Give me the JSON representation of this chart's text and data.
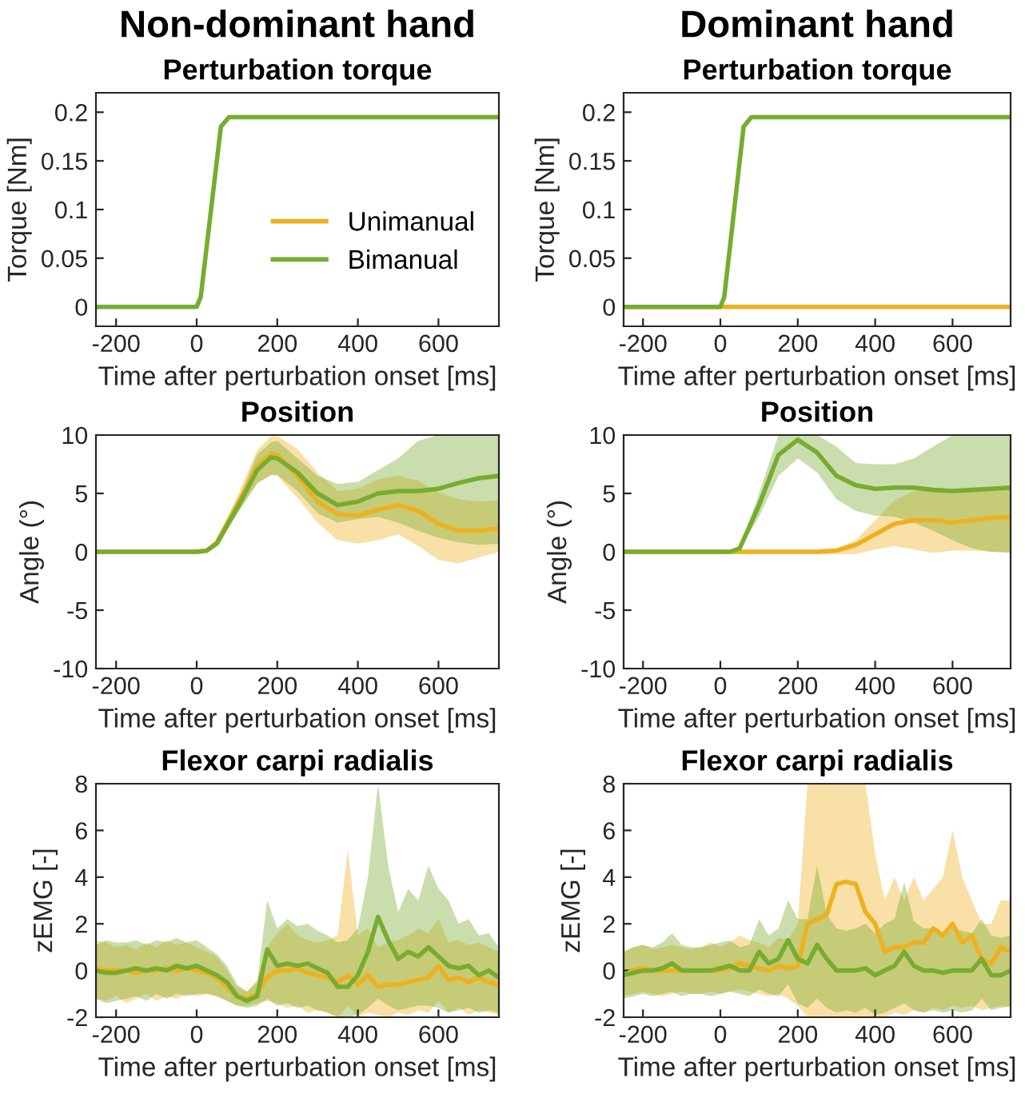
{
  "chart_data": [
    {
      "type": "line",
      "title": "Non-dominant hand",
      "subtitle": "Perturbation torque",
      "xlabel": "Time after perturbation onset [ms]",
      "ylabel": "Torque [Nm]",
      "xlim": [
        -250,
        750
      ],
      "xticks": [
        -200,
        0,
        200,
        400,
        600
      ],
      "ylim": [
        -0.02,
        0.22
      ],
      "yticks": [
        0,
        0.05,
        0.1,
        0.15,
        0.2
      ],
      "legend": "lower right",
      "grid": false,
      "series": [
        {
          "name": "Unimanual",
          "color": "#edb120"
        },
        {
          "name": "Bimanual",
          "color": "#77ac30",
          "x": [
            -250,
            0,
            10,
            60,
            80,
            100,
            750
          ],
          "values": [
            0,
            0,
            0.01,
            0.185,
            0.195,
            0.195,
            0.195
          ]
        }
      ]
    },
    {
      "type": "line",
      "title": "Dominant hand",
      "subtitle": "Perturbation torque",
      "xlabel": "Time after perturbation onset [ms]",
      "ylabel": "Torque [Nm]",
      "xlim": [
        -250,
        750
      ],
      "xticks": [
        -200,
        0,
        200,
        400,
        600
      ],
      "ylim": [
        -0.02,
        0.22
      ],
      "yticks": [
        0,
        0.05,
        0.1,
        0.15,
        0.2
      ],
      "grid": false,
      "series": [
        {
          "color": "#edb120",
          "x": [
            -250,
            750
          ],
          "values": [
            0,
            0
          ]
        },
        {
          "color": "#77ac30",
          "x": [
            -250,
            0,
            10,
            60,
            80,
            100,
            750
          ],
          "values": [
            0,
            0,
            0.01,
            0.185,
            0.195,
            0.195,
            0.195
          ]
        }
      ]
    },
    {
      "type": "line",
      "title": "Position",
      "xlabel": "Time after perturbation onset [ms]",
      "ylabel": "Angle (°)",
      "xlim": [
        -250,
        750
      ],
      "xticks": [
        -200,
        0,
        200,
        400,
        600
      ],
      "ylim": [
        -10,
        10
      ],
      "yticks": [
        -10,
        -5,
        0,
        5,
        10
      ],
      "grid": false,
      "series": [
        {
          "color": "#edb120",
          "x": [
            -250,
            0,
            25,
            50,
            100,
            150,
            185,
            200,
            250,
            300,
            350,
            400,
            450,
            500,
            550,
            600,
            650,
            700,
            750
          ],
          "values": [
            0,
            0,
            0.1,
            0.8,
            4,
            7.3,
            8.4,
            8.3,
            6.5,
            4.3,
            3.2,
            3.1,
            3.6,
            4,
            3.5,
            2.4,
            1.8,
            1.8,
            2
          ],
          "lower": [
            0,
            0,
            0.1,
            0.6,
            3.3,
            5.8,
            6.6,
            6.5,
            4.6,
            2.5,
            1,
            0.7,
            1,
            1.5,
            0.5,
            -0.7,
            -1,
            -0.5,
            0
          ],
          "upper": [
            0,
            0,
            0.1,
            1,
            4.7,
            8.7,
            9.9,
            9.9,
            8.8,
            6.8,
            5.2,
            5.4,
            6.2,
            6.5,
            6.1,
            5.1,
            4.5,
            4.3,
            4.4
          ]
        },
        {
          "color": "#77ac30",
          "x": [
            -250,
            0,
            25,
            50,
            100,
            150,
            185,
            200,
            250,
            300,
            350,
            400,
            450,
            500,
            550,
            600,
            650,
            700,
            750
          ],
          "values": [
            0,
            0,
            0.1,
            0.7,
            3.7,
            7,
            8.1,
            8,
            6.8,
            5,
            4,
            4.3,
            5,
            5.2,
            5.2,
            5.4,
            5.9,
            6.3,
            6.5
          ],
          "lower": [
            0,
            0,
            0.1,
            0.6,
            3.2,
            5.9,
            6.6,
            6.6,
            5.2,
            3.3,
            2.5,
            2.8,
            3,
            2.5,
            1.8,
            1.2,
            0.8,
            0.6,
            0.7
          ],
          "upper": [
            0,
            0,
            0.1,
            0.8,
            4.2,
            8.3,
            9.4,
            9.5,
            8,
            6.5,
            5.8,
            6,
            7,
            8,
            9.5,
            10,
            10,
            10,
            10
          ]
        }
      ]
    },
    {
      "type": "line",
      "title": "Position",
      "xlabel": "Time after perturbation onset [ms]",
      "ylabel": "Angle (°)",
      "xlim": [
        -250,
        750
      ],
      "xticks": [
        -200,
        0,
        200,
        400,
        600
      ],
      "ylim": [
        -10,
        10
      ],
      "yticks": [
        -10,
        -5,
        0,
        5,
        10
      ],
      "grid": false,
      "series": [
        {
          "color": "#edb120",
          "x": [
            -250,
            250,
            300,
            350,
            400,
            450,
            500,
            550,
            600,
            650,
            700,
            750
          ],
          "values": [
            0,
            0,
            0.1,
            0.6,
            1.5,
            2.4,
            2.7,
            2.7,
            2.5,
            2.7,
            2.9,
            3
          ],
          "lower": [
            -0.2,
            -0.2,
            -0.2,
            -0.2,
            0.2,
            0.5,
            0.2,
            -0.1,
            0.1,
            0.1,
            0,
            0
          ],
          "upper": [
            0.2,
            0.2,
            0.3,
            1,
            2.7,
            4.4,
            5.2,
            5.5,
            5.3,
            5.3,
            5.5,
            5.6
          ]
        },
        {
          "color": "#77ac30",
          "x": [
            -250,
            25,
            50,
            100,
            150,
            200,
            250,
            300,
            350,
            400,
            450,
            500,
            550,
            600,
            650,
            700,
            750
          ],
          "values": [
            0,
            0,
            0.3,
            4,
            8.3,
            9.6,
            8.5,
            6.5,
            5.7,
            5.4,
            5.5,
            5.5,
            5.3,
            5.2,
            5.3,
            5.4,
            5.5
          ],
          "lower": [
            0,
            0,
            0.2,
            3,
            6.5,
            8,
            6.8,
            4.5,
            3.5,
            3.1,
            3,
            2.5,
            1.8,
            1,
            0.3,
            0,
            -0.1
          ],
          "upper": [
            0,
            0,
            0.4,
            5,
            10,
            10,
            10,
            9,
            7.6,
            7.5,
            7.5,
            8,
            9,
            10,
            10,
            10,
            10
          ]
        }
      ]
    },
    {
      "type": "line",
      "title": "Flexor carpi radialis",
      "xlabel": "Time after perturbation onset [ms]",
      "ylabel": "zEMG [-]",
      "xlim": [
        -250,
        750
      ],
      "xticks": [
        -200,
        0,
        200,
        400,
        600
      ],
      "ylim": [
        -2,
        8
      ],
      "yticks": [
        -2,
        0,
        2,
        4,
        6,
        8
      ],
      "grid": false,
      "series": [
        {
          "color": "#edb120",
          "x": [
            -250,
            -225,
            -200,
            -175,
            -150,
            -125,
            -100,
            -75,
            -50,
            -25,
            0,
            25,
            50,
            75,
            100,
            125,
            150,
            175,
            200,
            225,
            250,
            275,
            300,
            325,
            350,
            375,
            400,
            425,
            450,
            475,
            500,
            525,
            550,
            575,
            600,
            625,
            650,
            675,
            700,
            725,
            750
          ],
          "values": [
            0.1,
            0,
            0,
            0,
            -0.1,
            0,
            0,
            0.1,
            0,
            0.1,
            0,
            -0.1,
            -0.3,
            -0.7,
            -1.1,
            -1.2,
            -1,
            -0.3,
            0,
            0,
            0.1,
            -0.1,
            -0.2,
            -0.3,
            -0.5,
            -0.2,
            -0.6,
            -0.2,
            -0.7,
            -0.6,
            -0.6,
            -0.5,
            -0.4,
            -0.3,
            0.2,
            -0.4,
            -0.3,
            -0.5,
            -0.3,
            -0.5,
            -0.6
          ],
          "lower": [
            -1.2,
            -1.3,
            -1.1,
            -1.4,
            -1.2,
            -1,
            -1.3,
            -1.1,
            -1.2,
            -1,
            -1.1,
            -1,
            -1.1,
            -1.3,
            -1.5,
            -1.5,
            -1.4,
            -1.3,
            -1.4,
            -1.6,
            -1.5,
            -1.8,
            -1.7,
            -1.8,
            -2,
            -1.5,
            -2,
            -1.8,
            -1.9,
            -2,
            -1.8,
            -1.9,
            -1.7,
            -1.8,
            -1.3,
            -1.8,
            -1.6,
            -1.9,
            -1.7,
            -1.8,
            -1.9
          ],
          "upper": [
            1.3,
            1.2,
            1,
            1.1,
            0.9,
            1.2,
            1,
            1.3,
            1.1,
            1.2,
            1,
            0.8,
            0.6,
            0,
            -0.7,
            -0.9,
            -0.4,
            1,
            1.6,
            2,
            1.5,
            1.3,
            1.2,
            1.3,
            1.5,
            5.2,
            1.5,
            1.8,
            1,
            1.2,
            1.3,
            1.5,
            1.8,
            1.6,
            2.2,
            1.2,
            1.3,
            1.1,
            1.2,
            1,
            0.8
          ]
        },
        {
          "color": "#77ac30",
          "x": [
            -250,
            -225,
            -200,
            -175,
            -150,
            -125,
            -100,
            -75,
            -50,
            -25,
            0,
            25,
            50,
            75,
            100,
            125,
            150,
            175,
            200,
            225,
            250,
            275,
            300,
            325,
            350,
            375,
            400,
            425,
            450,
            475,
            500,
            525,
            550,
            575,
            600,
            625,
            650,
            675,
            700,
            725,
            750
          ],
          "values": [
            0,
            -0.1,
            -0.1,
            0,
            0.1,
            0,
            0.1,
            0,
            0.2,
            0.1,
            0.2,
            0,
            -0.2,
            -0.5,
            -1.1,
            -1.3,
            -1.1,
            0.9,
            0.2,
            0.3,
            0.2,
            0.3,
            0.1,
            -0.1,
            -0.7,
            -0.7,
            -0.2,
            0.8,
            2.3,
            1.3,
            0.5,
            0.8,
            0.6,
            1,
            0.6,
            0.2,
            0.1,
            0.2,
            -0.2,
            0,
            -0.3
          ],
          "lower": [
            -1.2,
            -1.4,
            -1.3,
            -1.2,
            -1.1,
            -1.3,
            -1,
            -1.2,
            -1,
            -1.1,
            -1,
            -1,
            -1.1,
            -1.3,
            -1.5,
            -1.6,
            -1.5,
            -1.2,
            -1.5,
            -1.4,
            -1.6,
            -1.5,
            -1.7,
            -1.8,
            -2,
            -2,
            -1.9,
            -1.6,
            -1.2,
            -1.5,
            -1.7,
            -1.6,
            -1.5,
            -1.5,
            -1.6,
            -1.8,
            -1.7,
            -1.6,
            -1.8,
            -1.7,
            -1.8
          ],
          "upper": [
            1.1,
            1.3,
            1.2,
            1.2,
            1.3,
            1.1,
            1.3,
            1.2,
            1.4,
            1.2,
            1.3,
            1,
            0.7,
            0.2,
            -0.6,
            -0.9,
            -0.5,
            3,
            1.8,
            2.2,
            1.9,
            2,
            1.7,
            1.5,
            1.2,
            1.3,
            1.8,
            4,
            8,
            4.5,
            2.5,
            3.5,
            3,
            4.5,
            3.5,
            3,
            2,
            2.2,
            1.5,
            1.6,
            1
          ]
        }
      ]
    },
    {
      "type": "line",
      "title": "Flexor carpi radialis",
      "xlabel": "Time after perturbation onset [ms]",
      "ylabel": "zEMG [-]",
      "xlim": [
        -250,
        750
      ],
      "xticks": [
        -200,
        0,
        200,
        400,
        600
      ],
      "ylim": [
        -2,
        8
      ],
      "yticks": [
        -2,
        0,
        2,
        4,
        6,
        8
      ],
      "grid": false,
      "series": [
        {
          "color": "#edb120",
          "x": [
            -250,
            -225,
            -200,
            -175,
            -150,
            -125,
            -100,
            -75,
            -50,
            -25,
            0,
            25,
            50,
            75,
            100,
            125,
            150,
            175,
            200,
            225,
            250,
            275,
            300,
            325,
            350,
            375,
            400,
            425,
            450,
            475,
            500,
            525,
            550,
            575,
            600,
            625,
            650,
            675,
            700,
            725,
            750
          ],
          "values": [
            -0.2,
            0,
            0.1,
            0,
            0,
            0,
            0,
            0,
            0,
            0,
            0,
            0.1,
            0.3,
            0.2,
            0.1,
            0,
            0.2,
            0.1,
            0.2,
            2,
            2.2,
            2.4,
            3.7,
            3.8,
            3.7,
            2.5,
            2,
            0.8,
            1,
            1,
            1.2,
            1.2,
            1.8,
            1.5,
            2,
            1.2,
            1.5,
            0.5,
            0.3,
            1,
            0.8
          ],
          "lower": [
            -1.1,
            -1,
            -0.9,
            -1,
            -1.1,
            -1,
            -0.9,
            -1,
            -1,
            -0.9,
            -1,
            -0.9,
            -0.8,
            -0.9,
            -1,
            -1.1,
            -1,
            -1.2,
            -1.5,
            -2,
            -2,
            -2,
            -2,
            -2,
            -2,
            -2,
            -2,
            -2,
            -1.8,
            -1.9,
            -1.7,
            -1.8,
            -1.6,
            -1.7,
            -1.5,
            -1.6,
            -1.5,
            -1.7,
            -1.6,
            -1.5,
            -1.6
          ],
          "upper": [
            0.8,
            1,
            1.1,
            0.9,
            1,
            1.1,
            1,
            0.9,
            1,
            1.2,
            1,
            1.2,
            1.5,
            1.3,
            1.2,
            1,
            1.4,
            1.3,
            2,
            8,
            8,
            8,
            8,
            8,
            8,
            8,
            5,
            3,
            4,
            3,
            4,
            3,
            3.5,
            4,
            6,
            4,
            3,
            2,
            2,
            3,
            3
          ]
        },
        {
          "color": "#77ac30",
          "x": [
            -250,
            -225,
            -200,
            -175,
            -150,
            -125,
            -100,
            -75,
            -50,
            -25,
            0,
            25,
            50,
            75,
            100,
            125,
            150,
            175,
            200,
            225,
            250,
            275,
            300,
            325,
            350,
            375,
            400,
            425,
            450,
            475,
            500,
            525,
            550,
            575,
            600,
            625,
            650,
            675,
            700,
            725,
            750
          ],
          "values": [
            -0.2,
            -0.1,
            0,
            0,
            0.1,
            0.3,
            0,
            0,
            0,
            0,
            0.1,
            0.2,
            0,
            0,
            0.8,
            0.3,
            0.5,
            1.3,
            0.5,
            0.3,
            1.1,
            0.5,
            0,
            0,
            0,
            0.1,
            -0.2,
            0,
            0.2,
            0.8,
            0.2,
            0,
            0,
            -0.1,
            0,
            0,
            0,
            0.5,
            -0.2,
            -0.2,
            0
          ],
          "lower": [
            -1.2,
            -1.1,
            -1,
            -1.1,
            -1,
            -0.9,
            -1.1,
            -1,
            -1,
            -1.1,
            -1,
            -0.9,
            -1,
            -1.1,
            -0.8,
            -1,
            -1.1,
            -0.6,
            -1.4,
            -1.6,
            -1.2,
            -1.6,
            -1.8,
            -1.7,
            -1.8,
            -1.6,
            -1.9,
            -1.8,
            -1.6,
            -1.4,
            -1.7,
            -1.8,
            -1.7,
            -1.8,
            -1.7,
            -1.8,
            -1.7,
            -1.2,
            -1.7,
            -1.6,
            -1.5
          ],
          "upper": [
            0.8,
            1,
            1.1,
            1,
            1.2,
            1.6,
            1.1,
            1,
            1,
            1.1,
            1.2,
            1.3,
            1,
            1.1,
            2.2,
            1.5,
            1.8,
            3,
            2.2,
            2.2,
            4.5,
            2.4,
            1.8,
            1.7,
            1.8,
            2,
            1.6,
            2,
            2.2,
            3.8,
            2.1,
            1.8,
            1.8,
            1.6,
            1.8,
            1.7,
            1.6,
            2.2,
            1.5,
            1.4,
            1.5
          ]
        }
      ]
    }
  ]
}
